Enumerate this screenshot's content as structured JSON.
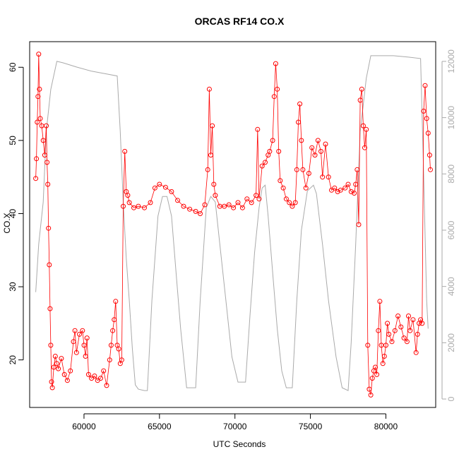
{
  "chart_data": {
    "type": "scatter",
    "title": "ORCAS RF14 CO.X",
    "xlabel": "UTC Seconds",
    "ylabel": "CO.X",
    "xlim": [
      56400,
      83300
    ],
    "ylim": [
      13.5,
      63.5
    ],
    "y2lim": [
      -300,
      12700
    ],
    "x_ticks": [
      60000,
      65000,
      70000,
      75000,
      80000
    ],
    "x_tick_labels": [
      "60000",
      "65000",
      "70000",
      "75000",
      "80000"
    ],
    "y_ticks": [
      20,
      30,
      40,
      50,
      60
    ],
    "y_tick_labels": [
      "20",
      "30",
      "40",
      "50",
      "60"
    ],
    "y2_ticks": [
      0,
      2000,
      4000,
      6000,
      8000,
      10000,
      12000
    ],
    "y2_tick_labels": [
      "0",
      "2000",
      "4000",
      "6000",
      "8000",
      "10000",
      "12000"
    ],
    "grid": false,
    "colors": {
      "co": "#ff0000",
      "altitude": "#aaaaaa"
    },
    "series": [
      {
        "marker": "open-circle",
        "values": [
          [
            56800,
            44.8
          ],
          [
            56850,
            47.5
          ],
          [
            56900,
            52.5
          ],
          [
            56950,
            56.0
          ],
          [
            57000,
            61.8
          ],
          [
            57050,
            57.0
          ],
          [
            57100,
            53.0
          ],
          [
            57200,
            52.0
          ],
          [
            57300,
            50.0
          ],
          [
            57400,
            48.0
          ],
          [
            57500,
            52.0
          ],
          [
            57550,
            47.0
          ],
          [
            57600,
            44.0
          ],
          [
            57650,
            38.0
          ],
          [
            57700,
            33.0
          ],
          [
            57750,
            27.0
          ],
          [
            57800,
            22.0
          ],
          [
            57850,
            17.0
          ],
          [
            57900,
            16.2
          ],
          [
            58000,
            19.0
          ],
          [
            58100,
            20.5
          ],
          [
            58200,
            19.5
          ],
          [
            58300,
            18.8
          ],
          [
            58500,
            20.2
          ],
          [
            58700,
            18.0
          ],
          [
            58900,
            17.2
          ],
          [
            59100,
            18.5
          ],
          [
            59300,
            22.5
          ],
          [
            59400,
            24.0
          ],
          [
            59500,
            21.0
          ],
          [
            59700,
            23.5
          ],
          [
            59900,
            24.0
          ],
          [
            60000,
            22.0
          ],
          [
            60100,
            20.5
          ],
          [
            60200,
            23.0
          ],
          [
            60300,
            18.0
          ],
          [
            60500,
            17.5
          ],
          [
            60700,
            17.8
          ],
          [
            60900,
            17.2
          ],
          [
            61100,
            17.5
          ],
          [
            61300,
            18.5
          ],
          [
            61500,
            16.5
          ],
          [
            61700,
            20.0
          ],
          [
            61800,
            22.0
          ],
          [
            61900,
            24.0
          ],
          [
            62000,
            25.5
          ],
          [
            62100,
            28.0
          ],
          [
            62200,
            22.0
          ],
          [
            62300,
            21.5
          ],
          [
            62400,
            19.5
          ],
          [
            62500,
            20.0
          ],
          [
            62600,
            41.0
          ],
          [
            62700,
            48.5
          ],
          [
            62800,
            43.0
          ],
          [
            62900,
            42.5
          ],
          [
            63000,
            41.5
          ],
          [
            63300,
            40.8
          ],
          [
            63600,
            41.0
          ],
          [
            64000,
            40.8
          ],
          [
            64400,
            41.5
          ],
          [
            64700,
            43.5
          ],
          [
            65000,
            44.0
          ],
          [
            65400,
            43.6
          ],
          [
            65800,
            43.0
          ],
          [
            66200,
            41.8
          ],
          [
            66600,
            41.0
          ],
          [
            67000,
            40.6
          ],
          [
            67400,
            40.3
          ],
          [
            67700,
            40.0
          ],
          [
            68000,
            41.2
          ],
          [
            68200,
            46.0
          ],
          [
            68300,
            57.0
          ],
          [
            68400,
            48.0
          ],
          [
            68500,
            52.0
          ],
          [
            68600,
            44.0
          ],
          [
            68700,
            42.5
          ],
          [
            69000,
            41.0
          ],
          [
            69300,
            41.0
          ],
          [
            69600,
            41.2
          ],
          [
            69900,
            40.8
          ],
          [
            70200,
            41.5
          ],
          [
            70500,
            40.8
          ],
          [
            70800,
            42.0
          ],
          [
            71100,
            41.5
          ],
          [
            71400,
            42.5
          ],
          [
            71500,
            51.5
          ],
          [
            71600,
            42.0
          ],
          [
            71800,
            46.5
          ],
          [
            72000,
            47.0
          ],
          [
            72200,
            48.0
          ],
          [
            72300,
            48.5
          ],
          [
            72500,
            50.0
          ],
          [
            72600,
            56.0
          ],
          [
            72700,
            60.5
          ],
          [
            72800,
            57.0
          ],
          [
            72900,
            48.5
          ],
          [
            73000,
            44.5
          ],
          [
            73200,
            43.5
          ],
          [
            73400,
            42.0
          ],
          [
            73600,
            41.5
          ],
          [
            73800,
            41.0
          ],
          [
            74000,
            41.5
          ],
          [
            74100,
            46.0
          ],
          [
            74200,
            52.5
          ],
          [
            74300,
            55.0
          ],
          [
            74400,
            50.0
          ],
          [
            74500,
            46.0
          ],
          [
            74700,
            43.5
          ],
          [
            74900,
            45.5
          ],
          [
            75100,
            49.0
          ],
          [
            75300,
            48.0
          ],
          [
            75500,
            50.0
          ],
          [
            75700,
            48.5
          ],
          [
            75800,
            45.0
          ],
          [
            76000,
            49.5
          ],
          [
            76200,
            45.0
          ],
          [
            76400,
            43.2
          ],
          [
            76600,
            43.5
          ],
          [
            76800,
            43.0
          ],
          [
            77000,
            43.2
          ],
          [
            77300,
            43.5
          ],
          [
            77500,
            44.0
          ],
          [
            77700,
            43.0
          ],
          [
            77900,
            42.8
          ],
          [
            78000,
            44.0
          ],
          [
            78100,
            46.0
          ],
          [
            78200,
            38.5
          ],
          [
            78300,
            55.5
          ],
          [
            78400,
            57.0
          ],
          [
            78500,
            52.0
          ],
          [
            78600,
            49.0
          ],
          [
            78700,
            51.5
          ],
          [
            78800,
            22.0
          ],
          [
            78900,
            16.0
          ],
          [
            79000,
            15.2
          ],
          [
            79100,
            17.5
          ],
          [
            79200,
            18.5
          ],
          [
            79300,
            19.0
          ],
          [
            79400,
            18.0
          ],
          [
            79500,
            24.0
          ],
          [
            79600,
            28.0
          ],
          [
            79700,
            22.0
          ],
          [
            79800,
            19.5
          ],
          [
            79900,
            20.5
          ],
          [
            80000,
            22.0
          ],
          [
            80100,
            25.0
          ],
          [
            80200,
            23.5
          ],
          [
            80400,
            22.5
          ],
          [
            80600,
            24.0
          ],
          [
            80800,
            26.0
          ],
          [
            81000,
            24.5
          ],
          [
            81200,
            23.0
          ],
          [
            81400,
            22.5
          ],
          [
            81500,
            26.0
          ],
          [
            81600,
            24.0
          ],
          [
            81800,
            25.5
          ],
          [
            82000,
            21.0
          ],
          [
            82100,
            23.5
          ],
          [
            82200,
            25.0
          ],
          [
            82300,
            25.5
          ],
          [
            82400,
            25.0
          ],
          [
            82500,
            54.0
          ],
          [
            82600,
            57.5
          ],
          [
            82700,
            53.0
          ],
          [
            82800,
            51.0
          ],
          [
            82900,
            48.0
          ],
          [
            82950,
            46.0
          ]
        ]
      },
      {
        "axis": "right",
        "line": true,
        "values": [
          [
            56800,
            3800
          ],
          [
            57000,
            5500
          ],
          [
            57300,
            7000
          ],
          [
            57500,
            9500
          ],
          [
            57800,
            11000
          ],
          [
            58200,
            12000
          ],
          [
            58600,
            11950
          ],
          [
            59500,
            11800
          ],
          [
            60500,
            11650
          ],
          [
            61500,
            11550
          ],
          [
            62200,
            11480
          ],
          [
            62400,
            9500
          ],
          [
            62600,
            7000
          ],
          [
            62800,
            5000
          ],
          [
            63000,
            3500
          ],
          [
            63200,
            1800
          ],
          [
            63400,
            500
          ],
          [
            63600,
            350
          ],
          [
            64000,
            300
          ],
          [
            64200,
            300
          ],
          [
            64500,
            3500
          ],
          [
            64900,
            6500
          ],
          [
            65200,
            7200
          ],
          [
            65500,
            7200
          ],
          [
            65800,
            6500
          ],
          [
            66100,
            4500
          ],
          [
            66400,
            2500
          ],
          [
            66800,
            400
          ],
          [
            67200,
            400
          ],
          [
            67400,
            400
          ],
          [
            67700,
            3500
          ],
          [
            68100,
            6800
          ],
          [
            68400,
            7200
          ],
          [
            68700,
            7000
          ],
          [
            69000,
            5500
          ],
          [
            69400,
            3500
          ],
          [
            69800,
            1500
          ],
          [
            70200,
            600
          ],
          [
            70700,
            600
          ],
          [
            71000,
            3000
          ],
          [
            71300,
            5200
          ],
          [
            71600,
            6800
          ],
          [
            71800,
            7500
          ],
          [
            72000,
            7600
          ],
          [
            72200,
            6500
          ],
          [
            72500,
            4500
          ],
          [
            72800,
            2500
          ],
          [
            73100,
            1000
          ],
          [
            73400,
            400
          ],
          [
            73800,
            400
          ],
          [
            74100,
            3500
          ],
          [
            74400,
            6000
          ],
          [
            74800,
            7400
          ],
          [
            75200,
            7600
          ],
          [
            75400,
            7300
          ],
          [
            75800,
            5500
          ],
          [
            76200,
            3500
          ],
          [
            76700,
            1500
          ],
          [
            77100,
            400
          ],
          [
            77500,
            300
          ],
          [
            77700,
            2000
          ],
          [
            78000,
            5500
          ],
          [
            78300,
            9500
          ],
          [
            78700,
            11400
          ],
          [
            79000,
            12200
          ],
          [
            80500,
            12200
          ],
          [
            81500,
            12150
          ],
          [
            82300,
            12100
          ],
          [
            82500,
            8000
          ],
          [
            82700,
            3500
          ],
          [
            82800,
            2500
          ]
        ]
      }
    ]
  }
}
